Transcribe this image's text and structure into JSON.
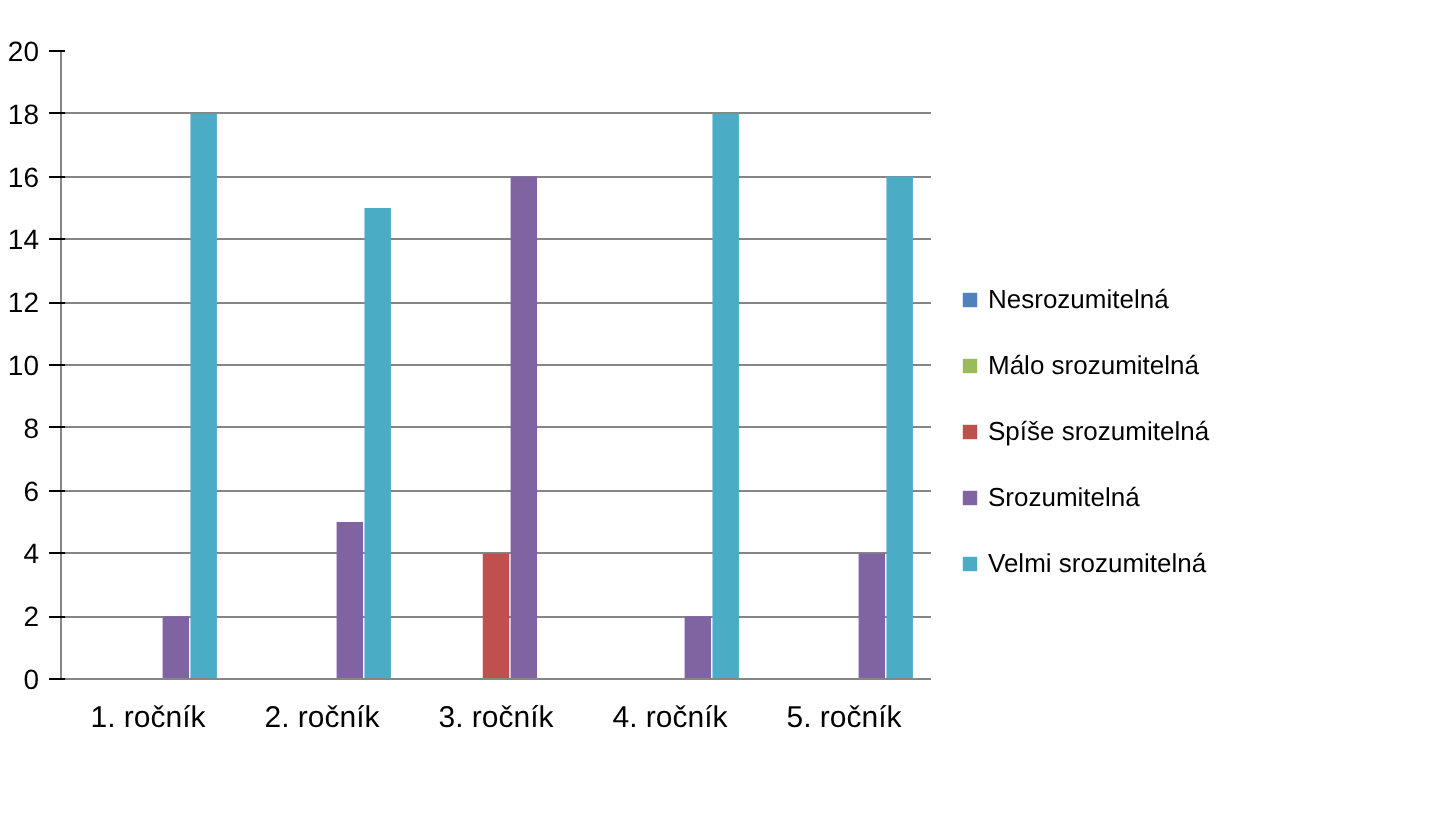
{
  "chart_data": {
    "type": "bar",
    "categories": [
      "1. ročník",
      "2. ročník",
      "3. ročník",
      "4. ročník",
      "5. ročník"
    ],
    "series": [
      {
        "name": "Nesrozumitelná",
        "color": "#4f81bd",
        "values": [
          0,
          0,
          0,
          0,
          0
        ]
      },
      {
        "name": "Málo srozumitelná",
        "color": "#9bbb59",
        "values": [
          0,
          0,
          0,
          0,
          0
        ]
      },
      {
        "name": "Spíše srozumitelná",
        "color": "#c0504d",
        "values": [
          0,
          0,
          4,
          0,
          0
        ]
      },
      {
        "name": "Srozumitelná",
        "color": "#8064a2",
        "values": [
          2,
          5,
          16,
          2,
          4
        ]
      },
      {
        "name": "Velmi srozumitelná",
        "color": "#4bacc6",
        "values": [
          18,
          15,
          0,
          18,
          16
        ]
      }
    ],
    "ylim": [
      0,
      20
    ],
    "yticks": [
      0,
      2,
      4,
      6,
      8,
      10,
      12,
      14,
      16,
      18,
      20
    ],
    "grid": "y",
    "legend": "right"
  }
}
